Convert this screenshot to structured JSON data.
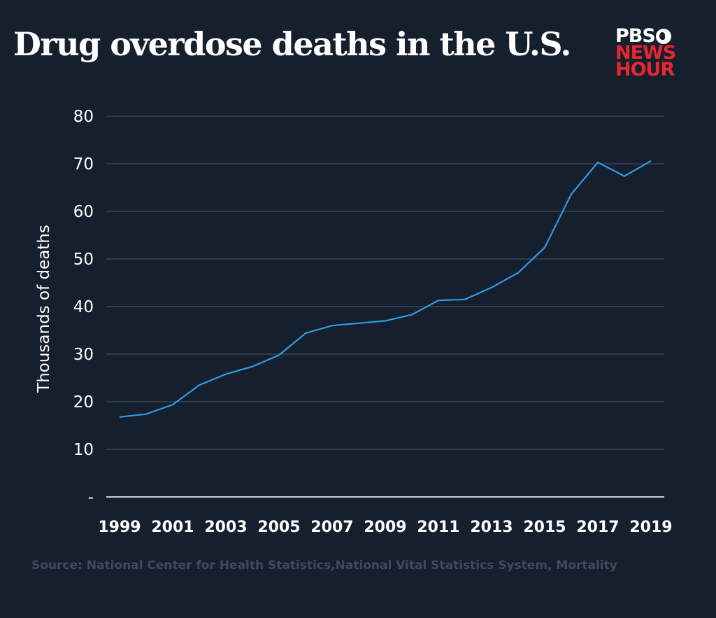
{
  "header": {
    "title": "Drug overdose deaths in the U.S.",
    "logo": {
      "line1": "PBS",
      "line2": "NEWS",
      "line3": "HOUR",
      "icon": "pbs-head-icon"
    }
  },
  "colors": {
    "background": "#161f2d",
    "line": "#2e9be6",
    "grid": "#3a4456",
    "baseline": "#c9ced6",
    "logo_red": "#e8262d",
    "source_text": "#3d4a60"
  },
  "footer": {
    "source": "Source: National Center for Health Statistics,National Vital Statistics System, Mortality"
  },
  "chart_data": {
    "type": "line",
    "title": "Drug overdose deaths in the U.S.",
    "xlabel": "",
    "ylabel": "Thousands of deaths",
    "x": [
      1999,
      2000,
      2001,
      2002,
      2003,
      2004,
      2005,
      2006,
      2007,
      2008,
      2009,
      2010,
      2011,
      2012,
      2013,
      2014,
      2015,
      2016,
      2017,
      2018,
      2019
    ],
    "series": [
      {
        "name": "Drug overdose deaths",
        "values": [
          16.8,
          17.4,
          19.4,
          23.5,
          25.8,
          27.4,
          29.8,
          34.4,
          36.0,
          36.5,
          37.0,
          38.3,
          41.3,
          41.5,
          44.0,
          47.1,
          52.4,
          63.6,
          70.3,
          67.4,
          70.6
        ]
      }
    ],
    "ylim": [
      0,
      80
    ],
    "yticks": [
      0,
      10,
      20,
      30,
      40,
      50,
      60,
      70,
      80
    ],
    "ytick_labels": [
      "-",
      "10",
      "20",
      "30",
      "40",
      "50",
      "60",
      "70",
      "80"
    ],
    "xticks": [
      1999,
      2001,
      2003,
      2005,
      2007,
      2009,
      2011,
      2013,
      2015,
      2017,
      2019
    ],
    "xtick_labels": [
      "1999",
      "2001",
      "2003",
      "2005",
      "2007",
      "2009",
      "2011",
      "2013",
      "2015",
      "2017",
      "2019"
    ],
    "grid": true,
    "legend": "none"
  }
}
